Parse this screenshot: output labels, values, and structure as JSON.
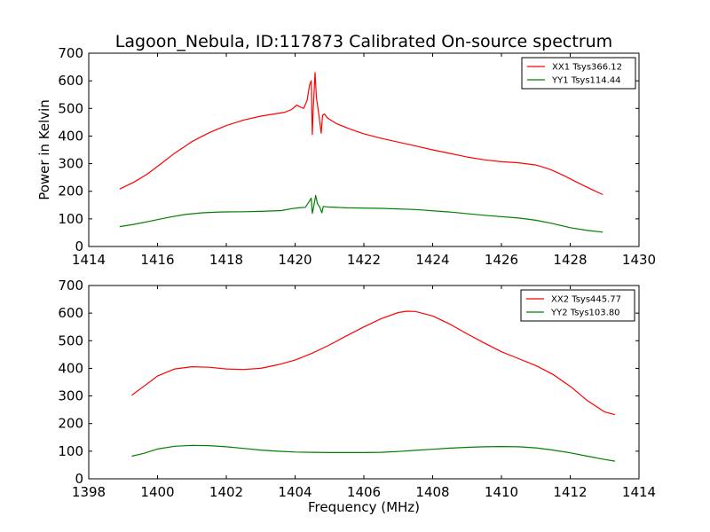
{
  "chart_data": [
    {
      "type": "line",
      "title": "Lagoon_Nebula, ID:117873 Calibrated On-source spectrum",
      "xlabel": "",
      "ylabel": "Power in Kelvin",
      "xlim": [
        1414,
        1430
      ],
      "ylim": [
        0,
        700
      ],
      "xticks": [
        1414,
        1416,
        1418,
        1420,
        1422,
        1424,
        1426,
        1428,
        1430
      ],
      "yticks": [
        0,
        100,
        200,
        300,
        400,
        500,
        600,
        700
      ],
      "grid": false,
      "legend_position": "top-right",
      "series": [
        {
          "name": "XX1 Tsys366.12",
          "color": "#ff0000",
          "points": [
            [
              1414.9,
              208
            ],
            [
              1415.3,
              232
            ],
            [
              1415.7,
              262
            ],
            [
              1416.1,
              300
            ],
            [
              1416.5,
              338
            ],
            [
              1417.0,
              380
            ],
            [
              1417.5,
              412
            ],
            [
              1418.0,
              438
            ],
            [
              1418.5,
              458
            ],
            [
              1419.0,
              472
            ],
            [
              1419.4,
              480
            ],
            [
              1419.7,
              486
            ],
            [
              1419.9,
              496
            ],
            [
              1420.05,
              512
            ],
            [
              1420.15,
              505
            ],
            [
              1420.25,
              500
            ],
            [
              1420.35,
              530
            ],
            [
              1420.42,
              585
            ],
            [
              1420.47,
              600
            ],
            [
              1420.5,
              405
            ],
            [
              1420.53,
              500
            ],
            [
              1420.58,
              630
            ],
            [
              1420.62,
              540
            ],
            [
              1420.7,
              470
            ],
            [
              1420.76,
              410
            ],
            [
              1420.8,
              475
            ],
            [
              1420.85,
              480
            ],
            [
              1420.95,
              465
            ],
            [
              1421.2,
              445
            ],
            [
              1421.6,
              425
            ],
            [
              1422.0,
              408
            ],
            [
              1422.5,
              392
            ],
            [
              1423.0,
              378
            ],
            [
              1423.5,
              364
            ],
            [
              1424.0,
              350
            ],
            [
              1424.5,
              337
            ],
            [
              1425.0,
              324
            ],
            [
              1425.5,
              314
            ],
            [
              1426.0,
              307
            ],
            [
              1426.5,
              303
            ],
            [
              1427.0,
              295
            ],
            [
              1427.4,
              280
            ],
            [
              1427.8,
              258
            ],
            [
              1428.2,
              232
            ],
            [
              1428.6,
              208
            ],
            [
              1428.95,
              188
            ]
          ]
        },
        {
          "name": "YY1 Tsys114.44",
          "color": "#008000",
          "points": [
            [
              1414.9,
              72
            ],
            [
              1415.3,
              80
            ],
            [
              1415.8,
              92
            ],
            [
              1416.3,
              105
            ],
            [
              1416.8,
              116
            ],
            [
              1417.3,
              122
            ],
            [
              1417.8,
              125
            ],
            [
              1418.5,
              126
            ],
            [
              1419.0,
              127
            ],
            [
              1419.6,
              130
            ],
            [
              1419.9,
              137
            ],
            [
              1420.1,
              140
            ],
            [
              1420.3,
              142
            ],
            [
              1420.42,
              165
            ],
            [
              1420.47,
              175
            ],
            [
              1420.5,
              120
            ],
            [
              1420.55,
              150
            ],
            [
              1420.6,
              185
            ],
            [
              1420.65,
              155
            ],
            [
              1420.72,
              142
            ],
            [
              1420.78,
              122
            ],
            [
              1420.82,
              145
            ],
            [
              1420.9,
              144
            ],
            [
              1421.0,
              143
            ],
            [
              1421.5,
              140
            ],
            [
              1422.5,
              138
            ],
            [
              1423.5,
              134
            ],
            [
              1424.5,
              125
            ],
            [
              1425.5,
              113
            ],
            [
              1426.5,
              103
            ],
            [
              1427.0,
              95
            ],
            [
              1427.5,
              83
            ],
            [
              1428.0,
              68
            ],
            [
              1428.5,
              58
            ],
            [
              1428.95,
              52
            ]
          ]
        }
      ]
    },
    {
      "type": "line",
      "title": "",
      "xlabel": "Frequency (MHz)",
      "ylabel": "",
      "xlim": [
        1398,
        1414
      ],
      "ylim": [
        0,
        700
      ],
      "xticks": [
        1398,
        1400,
        1402,
        1404,
        1406,
        1408,
        1410,
        1412,
        1414
      ],
      "yticks": [
        0,
        100,
        200,
        300,
        400,
        500,
        600,
        700
      ],
      "grid": false,
      "legend_position": "top-right",
      "series": [
        {
          "name": "XX2 Tsys445.77",
          "color": "#ff0000",
          "points": [
            [
              1399.25,
              302
            ],
            [
              1399.6,
              335
            ],
            [
              1400.0,
              372
            ],
            [
              1400.5,
              398
            ],
            [
              1401.0,
              406
            ],
            [
              1401.5,
              404
            ],
            [
              1402.0,
              398
            ],
            [
              1402.5,
              396
            ],
            [
              1403.0,
              400
            ],
            [
              1403.5,
              413
            ],
            [
              1404.0,
              430
            ],
            [
              1404.5,
              455
            ],
            [
              1405.0,
              485
            ],
            [
              1405.5,
              518
            ],
            [
              1406.0,
              550
            ],
            [
              1406.5,
              580
            ],
            [
              1407.0,
              602
            ],
            [
              1407.25,
              607
            ],
            [
              1407.5,
              606
            ],
            [
              1408.0,
              590
            ],
            [
              1408.5,
              560
            ],
            [
              1409.0,
              525
            ],
            [
              1409.5,
              492
            ],
            [
              1410.0,
              460
            ],
            [
              1410.5,
              435
            ],
            [
              1411.0,
              410
            ],
            [
              1411.5,
              378
            ],
            [
              1412.0,
              335
            ],
            [
              1412.5,
              283
            ],
            [
              1413.0,
              242
            ],
            [
              1413.3,
              232
            ]
          ]
        },
        {
          "name": "YY2 Tsys103.80",
          "color": "#008000",
          "points": [
            [
              1399.25,
              82
            ],
            [
              1399.6,
              92
            ],
            [
              1400.0,
              108
            ],
            [
              1400.5,
              118
            ],
            [
              1401.0,
              121
            ],
            [
              1401.5,
              120
            ],
            [
              1402.0,
              116
            ],
            [
              1402.5,
              110
            ],
            [
              1403.0,
              104
            ],
            [
              1403.5,
              100
            ],
            [
              1404.0,
              97
            ],
            [
              1404.5,
              96
            ],
            [
              1405.0,
              95
            ],
            [
              1406.0,
              95
            ],
            [
              1406.5,
              96
            ],
            [
              1407.0,
              99
            ],
            [
              1407.5,
              103
            ],
            [
              1408.0,
              107
            ],
            [
              1408.5,
              111
            ],
            [
              1409.0,
              114
            ],
            [
              1409.5,
              116
            ],
            [
              1410.0,
              117
            ],
            [
              1410.5,
              116
            ],
            [
              1411.0,
              112
            ],
            [
              1411.5,
              104
            ],
            [
              1412.0,
              94
            ],
            [
              1412.5,
              82
            ],
            [
              1413.0,
              70
            ],
            [
              1413.3,
              64
            ]
          ]
        }
      ]
    }
  ]
}
